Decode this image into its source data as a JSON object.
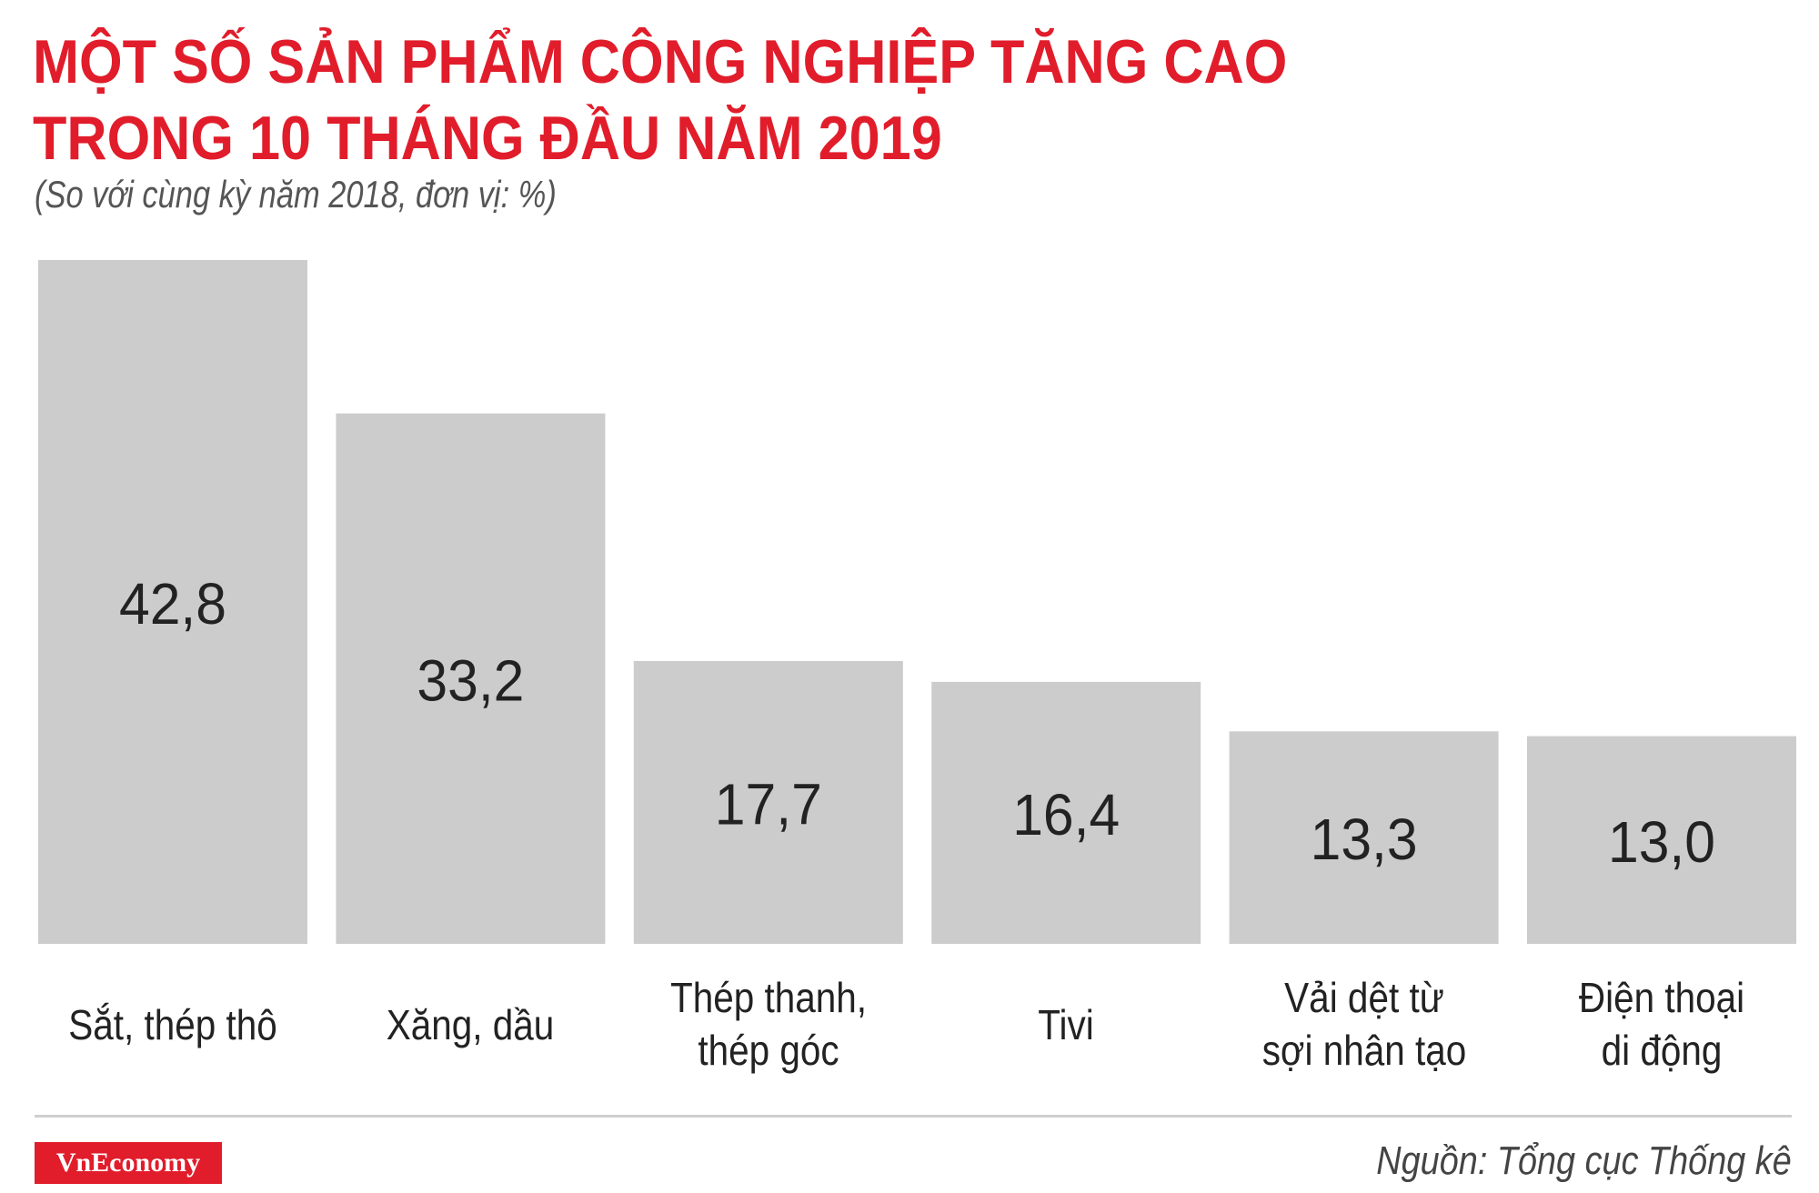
{
  "header": {
    "title_line1": "MỘT SỐ SẢN PHẨM CÔNG NGHIỆP TĂNG CAO",
    "title_line2": "TRONG 10 THÁNG ĐẦU NĂM 2019",
    "subtitle": "(So với cùng kỳ năm 2018, đơn vị: %)"
  },
  "chart_data": {
    "type": "bar",
    "title": "MỘT SỐ SẢN PHẨM CÔNG NGHIỆP TĂNG CAO TRONG 10 THÁNG ĐẦU NĂM 2019",
    "subtitle": "(So với cùng kỳ năm 2018, đơn vị: %)",
    "categories": [
      [
        "Sắt, thép thô"
      ],
      [
        "Xăng, dầu"
      ],
      [
        "Thép thanh,",
        "thép góc"
      ],
      [
        "Tivi"
      ],
      [
        "Vải dệt từ",
        "sợi nhân tạo"
      ],
      [
        "Điện thoại",
        "di động"
      ]
    ],
    "values": [
      42.8,
      33.2,
      17.7,
      16.4,
      13.3,
      13.0
    ],
    "value_labels": [
      "42,8",
      "33,2",
      "17,7",
      "16,4",
      "13,3",
      "13,0"
    ],
    "ylim": [
      0,
      42.8
    ],
    "grid": false,
    "legend": "none",
    "colors": {
      "bar": "#cdcccd",
      "label": "#222222"
    }
  },
  "footer": {
    "logo": "VnEconomy",
    "source": "Nguồn: Tổng cục Thống kê"
  },
  "colors": {
    "accent": "#e11d2b",
    "text": "#222222"
  }
}
